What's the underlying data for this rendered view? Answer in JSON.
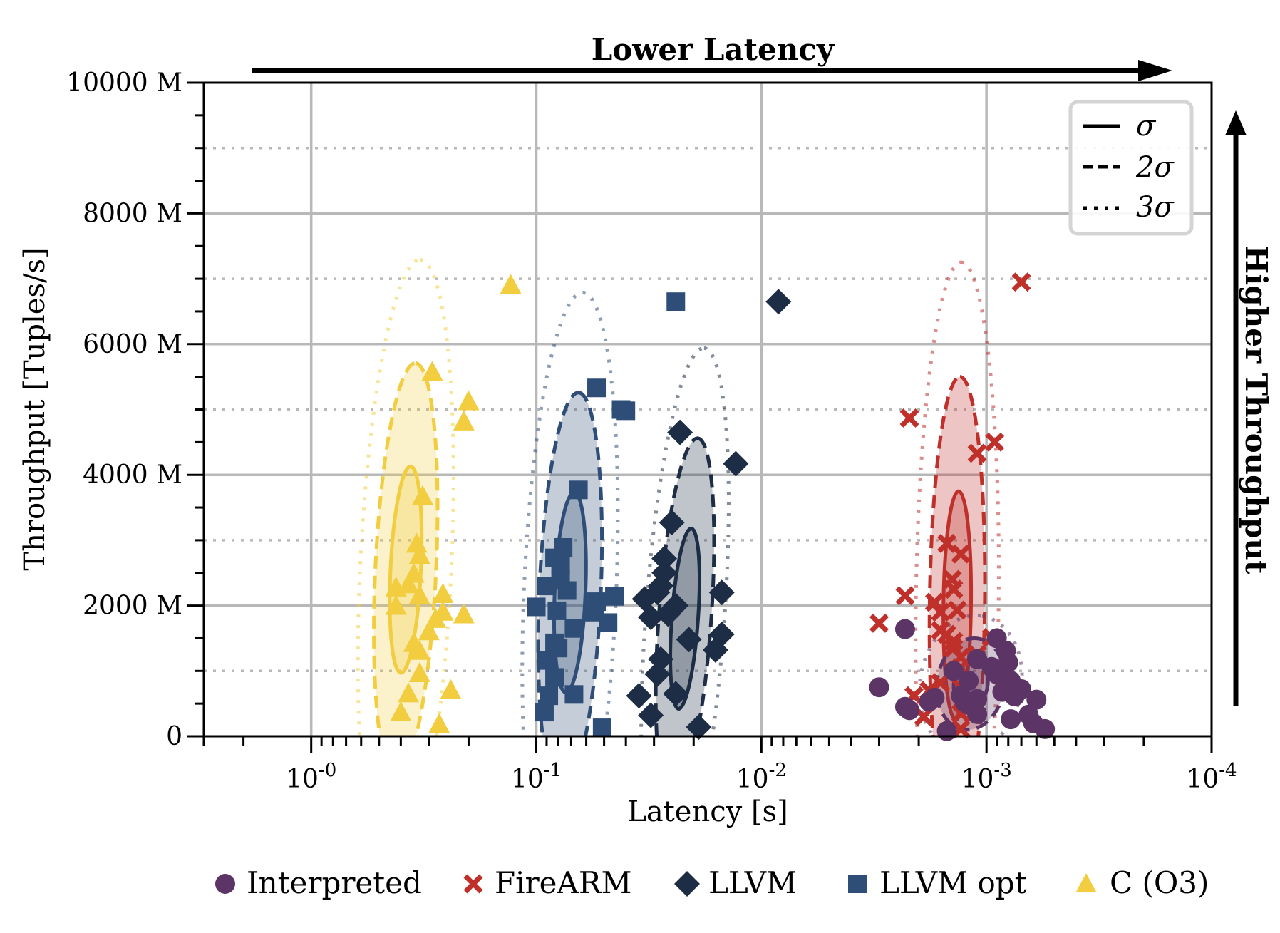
{
  "chart_data": {
    "type": "scatter",
    "xlabel": "Latency [s]",
    "ylabel": "Throughput [Tuples/s]",
    "x_scale": "log",
    "x_reversed": true,
    "xlim": [
      3,
      0.0001
    ],
    "ylim": [
      0,
      10000
    ],
    "y_unit": "M",
    "y_ticks": [
      0,
      2000,
      4000,
      6000,
      8000,
      10000
    ],
    "y_tick_labels": [
      "0",
      "2000 M",
      "4000 M",
      "6000 M",
      "8000 M",
      "10000 M"
    ],
    "x_ticks": [
      1,
      0.1,
      0.01,
      0.001,
      0.0001
    ],
    "x_tick_base": "10",
    "x_tick_exponents": [
      "-0",
      "-1",
      "-2",
      "-3",
      "-4"
    ],
    "grid": true,
    "top_arrow_label": "Lower Latency",
    "right_arrow_label": "Higher Throughput",
    "sigma_legend": {
      "position": "top-right",
      "entries": [
        {
          "style": "solid",
          "label": "σ"
        },
        {
          "style": "dashed",
          "label": "2σ"
        },
        {
          "style": "dotted",
          "label": "3σ"
        }
      ]
    },
    "legend_position": "bottom",
    "series": [
      {
        "name": "Interpreted",
        "marker": "circle",
        "color": "#5c3566",
        "points": [
          [
            0.003,
            750
          ],
          [
            0.0023,
            1640
          ],
          [
            0.0023,
            450
          ],
          [
            0.00082,
            1310
          ],
          [
            0.0009,
            1500
          ],
          [
            0.00095,
            1060
          ],
          [
            0.0011,
            1180
          ],
          [
            0.0012,
            850
          ],
          [
            0.0008,
            790
          ],
          [
            0.00078,
            850
          ],
          [
            0.0009,
            950
          ],
          [
            0.0013,
            620
          ],
          [
            0.0011,
            340
          ],
          [
            0.00125,
            520
          ],
          [
            0.0017,
            590
          ],
          [
            0.0018,
            530
          ],
          [
            0.00085,
            680
          ],
          [
            0.0007,
            720
          ],
          [
            0.00075,
            610
          ],
          [
            0.0006,
            560
          ],
          [
            0.00065,
            330
          ],
          [
            0.00062,
            200
          ],
          [
            0.00055,
            110
          ],
          [
            0.0008,
            1130
          ],
          [
            0.0015,
            80
          ],
          [
            0.0022,
            400
          ],
          [
            0.00078,
            260
          ],
          [
            0.0011,
            570
          ],
          [
            0.0014,
            1000
          ],
          [
            0.0012,
            480
          ]
        ]
      },
      {
        "name": "FireARM",
        "marker": "x",
        "color": "#c0302b",
        "points": [
          [
            0.0013,
            2790
          ],
          [
            0.0022,
            4870
          ],
          [
            0.0007,
            6950
          ],
          [
            0.0011,
            4330
          ],
          [
            0.00092,
            4500
          ],
          [
            0.0015,
            2950
          ],
          [
            0.00142,
            2400
          ],
          [
            0.0014,
            2250
          ],
          [
            0.00135,
            1930
          ],
          [
            0.0017,
            2050
          ],
          [
            0.0016,
            1900
          ],
          [
            0.0016,
            1620
          ],
          [
            0.0023,
            2150
          ],
          [
            0.003,
            1730
          ],
          [
            0.0013,
            1210
          ],
          [
            0.0013,
            1050
          ],
          [
            0.0013,
            750
          ],
          [
            0.0014,
            1450
          ],
          [
            0.00095,
            1510
          ],
          [
            0.0016,
            820
          ],
          [
            0.0018,
            700
          ],
          [
            0.0021,
            620
          ],
          [
            0.0019,
            300
          ],
          [
            0.0013,
            350
          ],
          [
            0.0013,
            110
          ],
          [
            0.0014,
            1350
          ],
          [
            0.0011,
            1250
          ],
          [
            0.0015,
            1560
          ]
        ]
      },
      {
        "name": "LLVM",
        "marker": "diamond",
        "color": "#1c2d45",
        "points": [
          [
            0.0084,
            6650
          ],
          [
            0.023,
            4650
          ],
          [
            0.013,
            4170
          ],
          [
            0.025,
            3270
          ],
          [
            0.027,
            2720
          ],
          [
            0.033,
            2100
          ],
          [
            0.029,
            2200
          ],
          [
            0.028,
            2300
          ],
          [
            0.026,
            1870
          ],
          [
            0.031,
            1820
          ],
          [
            0.021,
            1480
          ],
          [
            0.016,
            1320
          ],
          [
            0.015,
            1560
          ],
          [
            0.015,
            2200
          ],
          [
            0.028,
            1180
          ],
          [
            0.029,
            950
          ],
          [
            0.035,
            620
          ],
          [
            0.024,
            650
          ],
          [
            0.031,
            320
          ],
          [
            0.019,
            140
          ],
          [
            0.027,
            2500
          ],
          [
            0.024,
            2000
          ]
        ]
      },
      {
        "name": "LLVM opt",
        "marker": "square",
        "color": "#2e4d77",
        "points": [
          [
            0.024,
            6650
          ],
          [
            0.054,
            5330
          ],
          [
            0.04,
            4980
          ],
          [
            0.042,
            5000
          ],
          [
            0.065,
            3770
          ],
          [
            0.076,
            2890
          ],
          [
            0.078,
            2630
          ],
          [
            0.083,
            2730
          ],
          [
            0.073,
            2230
          ],
          [
            0.09,
            2300
          ],
          [
            0.1,
            1980
          ],
          [
            0.081,
            1920
          ],
          [
            0.054,
            2060
          ],
          [
            0.045,
            2140
          ],
          [
            0.068,
            1650
          ],
          [
            0.083,
            1430
          ],
          [
            0.09,
            1160
          ],
          [
            0.083,
            900
          ],
          [
            0.068,
            640
          ],
          [
            0.088,
            620
          ],
          [
            0.092,
            370
          ],
          [
            0.051,
            130
          ],
          [
            0.055,
            1900
          ],
          [
            0.048,
            1740
          ],
          [
            0.078,
            2400
          ],
          [
            0.08,
            1350
          ]
        ]
      },
      {
        "name": "C (O3)",
        "marker": "triangle",
        "color": "#f2cd3f",
        "points": [
          [
            0.13,
            6900
          ],
          [
            0.29,
            5570
          ],
          [
            0.2,
            5120
          ],
          [
            0.21,
            4810
          ],
          [
            0.32,
            3670
          ],
          [
            0.34,
            2940
          ],
          [
            0.33,
            2770
          ],
          [
            0.37,
            2320
          ],
          [
            0.42,
            1990
          ],
          [
            0.42,
            2270
          ],
          [
            0.33,
            2150
          ],
          [
            0.35,
            2480
          ],
          [
            0.26,
            2170
          ],
          [
            0.26,
            1900
          ],
          [
            0.28,
            1790
          ],
          [
            0.21,
            1860
          ],
          [
            0.3,
            1600
          ],
          [
            0.35,
            1420
          ],
          [
            0.33,
            960
          ],
          [
            0.24,
            700
          ],
          [
            0.37,
            650
          ],
          [
            0.4,
            360
          ],
          [
            0.27,
            180
          ],
          [
            0.33,
            1300
          ]
        ]
      }
    ],
    "ellipses": [
      {
        "series": "C (O3)",
        "color": "#f2cd3f",
        "center_log10_latency": -0.42,
        "center_throughput": 2550,
        "sigma_x_dec": 0.0708,
        "sigma_y": 1580,
        "rho": 0.3
      },
      {
        "series": "LLVM opt",
        "color": "#2e4d77",
        "center_log10_latency": -1.15,
        "center_throughput": 2200,
        "sigma_x_dec": 0.0708,
        "sigma_y": 1530,
        "rho": 0.26
      },
      {
        "series": "LLVM",
        "color": "#1c2d45",
        "center_log10_latency": -1.66,
        "center_throughput": 1800,
        "sigma_x_dec": 0.0648,
        "sigma_y": 1380,
        "rho": 0.43
      },
      {
        "series": "FireARM",
        "color": "#c0302b",
        "center_log10_latency": -2.87,
        "center_throughput": 2000,
        "sigma_x_dec": 0.0616,
        "sigma_y": 1750,
        "rho": 0.1
      },
      {
        "series": "Interpreted",
        "color": "#5c3566",
        "center_log10_latency": -2.93,
        "center_throughput": 800,
        "sigma_x_dec": 0.076,
        "sigma_y": 350,
        "rho": 0.1
      }
    ]
  },
  "colors": {
    "grid": "#b8b8b8",
    "interpreted": "#5c3566",
    "firearm": "#c0302b",
    "llvm": "#1c2d45",
    "llvm_opt": "#2e4d77",
    "c_o3": "#f2cd3f"
  }
}
